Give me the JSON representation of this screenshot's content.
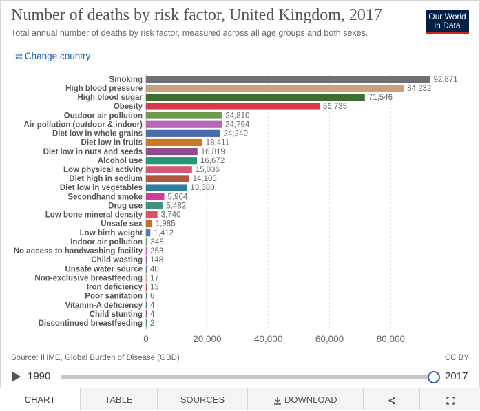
{
  "header": {
    "title": "Number of deaths by risk factor, United Kingdom, 2017",
    "subtitle": "Total annual number of deaths by risk factor, measured across all age groups and both sexes.",
    "logo_line1": "Our World",
    "logo_line2": "in Data",
    "change_country": "Change country"
  },
  "chart_data": {
    "type": "bar",
    "orientation": "horizontal",
    "title": "Number of deaths by risk factor, United Kingdom, 2017",
    "categories": [
      "Smoking",
      "High blood pressure",
      "High blood sugar",
      "Obesity",
      "Outdoor air pollution",
      "Air pollution (outdoor & indoor)",
      "Diet low in whole grains",
      "Diet low in fruits",
      "Diet low in nuts and seeds",
      "Alcohol use",
      "Low physical activity",
      "Diet high in sodium",
      "Diet low in vegetables",
      "Secondhand smoke",
      "Drug use",
      "Low bone mineral density",
      "Unsafe sex",
      "Low birth weight",
      "Indoor air pollution",
      "No access to handwashing facility",
      "Child wasting",
      "Unsafe water source",
      "Non-exclusive breastfeeding",
      "Iron deficiency",
      "Poor sanitation",
      "Vitamin-A deficiency",
      "Child stunting",
      "Discontinued breastfeeding"
    ],
    "values": [
      92871,
      84232,
      71546,
      56735,
      24810,
      24794,
      24240,
      18411,
      16819,
      16672,
      15036,
      14105,
      13380,
      5964,
      5482,
      3740,
      1985,
      1412,
      348,
      253,
      148,
      40,
      17,
      13,
      6,
      4,
      4,
      2
    ],
    "value_labels": [
      "92,871",
      "84,232",
      "71,546",
      "56,735",
      "24,810",
      "24,794",
      "24,240",
      "18,411",
      "16,819",
      "16,672",
      "15,036",
      "14,105",
      "13,380",
      "5,964",
      "5,482",
      "3,740",
      "1,985",
      "1,412",
      "348",
      "253",
      "148",
      "40",
      "17",
      "13",
      "6",
      "4",
      "4",
      "2"
    ],
    "colors": [
      "#6e7075",
      "#c9a17e",
      "#3f6d2f",
      "#d9394f",
      "#6d9a4d",
      "#b668b6",
      "#4c6bac",
      "#c97a25",
      "#8e4e8b",
      "#27977a",
      "#d25a75",
      "#b0563c",
      "#2f7f9a",
      "#d3389f",
      "#45907a",
      "#e04f6a",
      "#c86a2e",
      "#5875b8",
      "#5a9f5a",
      "#d0507f",
      "#9a5aa0",
      "#3a7fb0",
      "#c9a17e",
      "#d9394f",
      "#6e7075",
      "#4c6bac",
      "#8e4e8b",
      "#27977a"
    ],
    "xlim": [
      0,
      95000
    ],
    "xticks": [
      0,
      20000,
      40000,
      60000,
      80000
    ],
    "xtick_labels": [
      "0",
      "20,000",
      "40,000",
      "60,000",
      "80,000"
    ],
    "grid": true
  },
  "footer": {
    "source": "Source: IHME, Global Burden of Disease (GBD)",
    "license": "CC BY"
  },
  "timeline": {
    "start_year": "1990",
    "end_year": "2017",
    "position": 1.0
  },
  "tabs": {
    "chart": "Chart",
    "table": "Table",
    "sources": "Sources",
    "download": "Download"
  }
}
